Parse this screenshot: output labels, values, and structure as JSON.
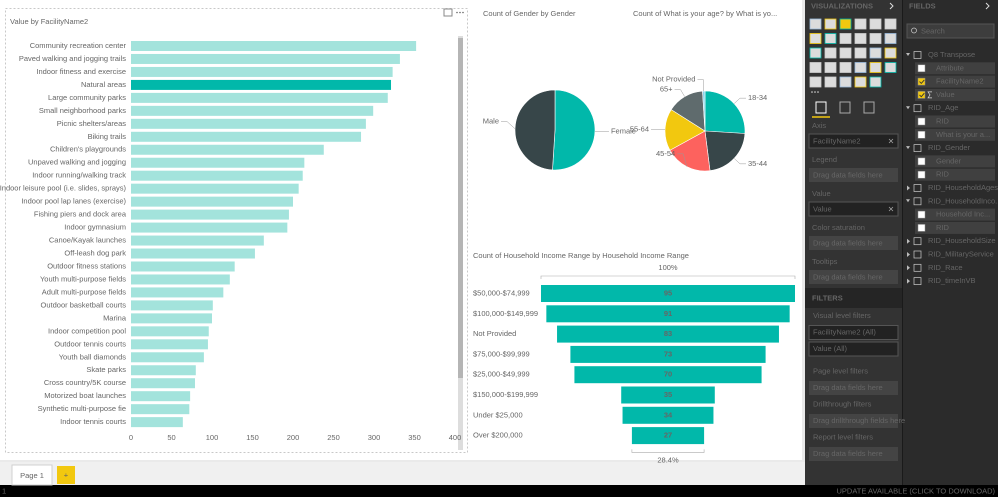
{
  "chart_data": [
    {
      "type": "bar",
      "orientation": "horizontal",
      "title": "Value by FacilityName2",
      "categories": [
        "Community recreation center",
        "Paved walking and jogging trails",
        "Indoor fitness and exercise",
        "Natural areas",
        "Large community parks",
        "Small neighborhood parks",
        "Picnic shelters/areas",
        "Biking trails",
        "Children's playgrounds",
        "Unpaved walking and jogging",
        "Indoor running/walking track",
        "Indoor leisure pool (i.e. slides, sprays)",
        "Indoor pool lap lanes (exercise)",
        "Fishing piers and dock area",
        "Indoor gymnasium",
        "Canoe/Kayak launches",
        "Off-leash dog park",
        "Outdoor fitness stations",
        "Youth multi-purpose fields",
        "Adult multi-purpose fields",
        "Outdoor basketball courts",
        "Marina",
        "Indoor competition pool",
        "Outdoor tennis courts",
        "Youth ball diamonds",
        "Skate parks",
        "Cross country/5K course",
        "Motorized boat launches",
        "Synthetic multi-purpose fie",
        "Indoor tennis courts"
      ],
      "values": [
        352,
        332,
        323,
        321,
        317,
        299,
        290,
        284,
        238,
        214,
        212,
        207,
        200,
        195,
        193,
        164,
        153,
        128,
        122,
        114,
        101,
        100,
        96,
        95,
        90,
        80,
        79,
        73,
        72,
        64
      ],
      "color": "#a3e3dc",
      "highlight": "Natural areas",
      "highlight_color": "#01b8aa",
      "xlim": [
        0,
        400
      ],
      "xticks": [
        0,
        50,
        100,
        150,
        200,
        250,
        300,
        350,
        400
      ],
      "grid": false
    },
    {
      "type": "pie",
      "title": "Count of Gender by Gender",
      "categories": [
        "Female",
        "Male"
      ],
      "values": [
        51,
        49
      ],
      "colors": [
        "#01b8aa",
        "#374649"
      ]
    },
    {
      "type": "pie",
      "title": "Count of What is your age? by What is yo...",
      "categories": [
        "18-34",
        "35-44",
        "45-54",
        "55-64",
        "65+",
        "Not Provided"
      ],
      "values": [
        26,
        22,
        19,
        17,
        15,
        1
      ],
      "colors": [
        "#01b8aa",
        "#374649",
        "#fd625e",
        "#f2c80f",
        "#5f6b6d",
        "#8ad4eb"
      ]
    },
    {
      "type": "funnel",
      "title": "Count of Household Income Range by Household Income Range",
      "categories": [
        "$50,000-$74,999",
        "$100,000-$149,999",
        "Not Provided",
        "$75,000-$99,999",
        "$25,000-$49,999",
        "$150,000-$199,999",
        "Under $25,000",
        "Over $200,000"
      ],
      "values": [
        95,
        91,
        83,
        73,
        70,
        35,
        34,
        27
      ],
      "color": "#01b8aa",
      "top_label": "100%",
      "bottom_label": "28.4%"
    }
  ],
  "tabs": {
    "pages": [
      "Page 1"
    ],
    "add": "+"
  },
  "status_bar": {
    "left": "1",
    "right": "UPDATE AVAILABLE (CLICK TO DOWNLOAD)"
  },
  "visualizations": {
    "title": "VISUALIZATIONS",
    "wells": [
      {
        "label": "Axis",
        "field": "FacilityName2"
      },
      {
        "label": "Legend",
        "placeholder": "Drag data fields here"
      },
      {
        "label": "Value",
        "field": "Value"
      },
      {
        "label": "Color saturation",
        "placeholder": "Drag data fields here"
      },
      {
        "label": "Tooltips",
        "placeholder": "Drag data fields here"
      }
    ]
  },
  "filters": {
    "title": "FILTERS",
    "items": [
      {
        "kind": "header",
        "text": "Visual level filters"
      },
      {
        "kind": "card",
        "text": "FacilityName2 (All)"
      },
      {
        "kind": "card",
        "text": "Value (All)"
      },
      {
        "kind": "header",
        "text": "Page level filters"
      },
      {
        "kind": "drop",
        "text": "Drag data fields here"
      },
      {
        "kind": "header",
        "text": "Drillthrough filters"
      },
      {
        "kind": "drop",
        "text": "Drag drillthrough fields here"
      },
      {
        "kind": "header",
        "text": "Report level filters"
      },
      {
        "kind": "drop",
        "text": "Drag data fields here"
      }
    ]
  },
  "fields": {
    "title": "FIELDS",
    "search": "Search",
    "tables": [
      {
        "name": "Q8 Transpose",
        "fields": [
          {
            "name": "Attribute",
            "checked": false
          },
          {
            "name": "FacilityName2",
            "checked": true
          },
          {
            "name": "Value",
            "checked": true,
            "aggregate": true
          }
        ]
      },
      {
        "name": "RID_Age",
        "fields": [
          {
            "name": "RID",
            "checked": false
          },
          {
            "name": "What is your a...",
            "checked": false
          }
        ]
      },
      {
        "name": "RID_Gender",
        "fields": [
          {
            "name": "Gender",
            "checked": false
          },
          {
            "name": "RID",
            "checked": false
          }
        ]
      },
      {
        "name": "RID_HouseholdAges"
      },
      {
        "name": "RID_HouseholdInco...",
        "fields": [
          {
            "name": "Household Inc...",
            "checked": false
          },
          {
            "name": "RID",
            "checked": false
          }
        ]
      },
      {
        "name": "RID_HouseholdSize"
      },
      {
        "name": "RID_MilitaryService"
      },
      {
        "name": "RID_Race"
      },
      {
        "name": "RID_timeInVB"
      }
    ]
  }
}
